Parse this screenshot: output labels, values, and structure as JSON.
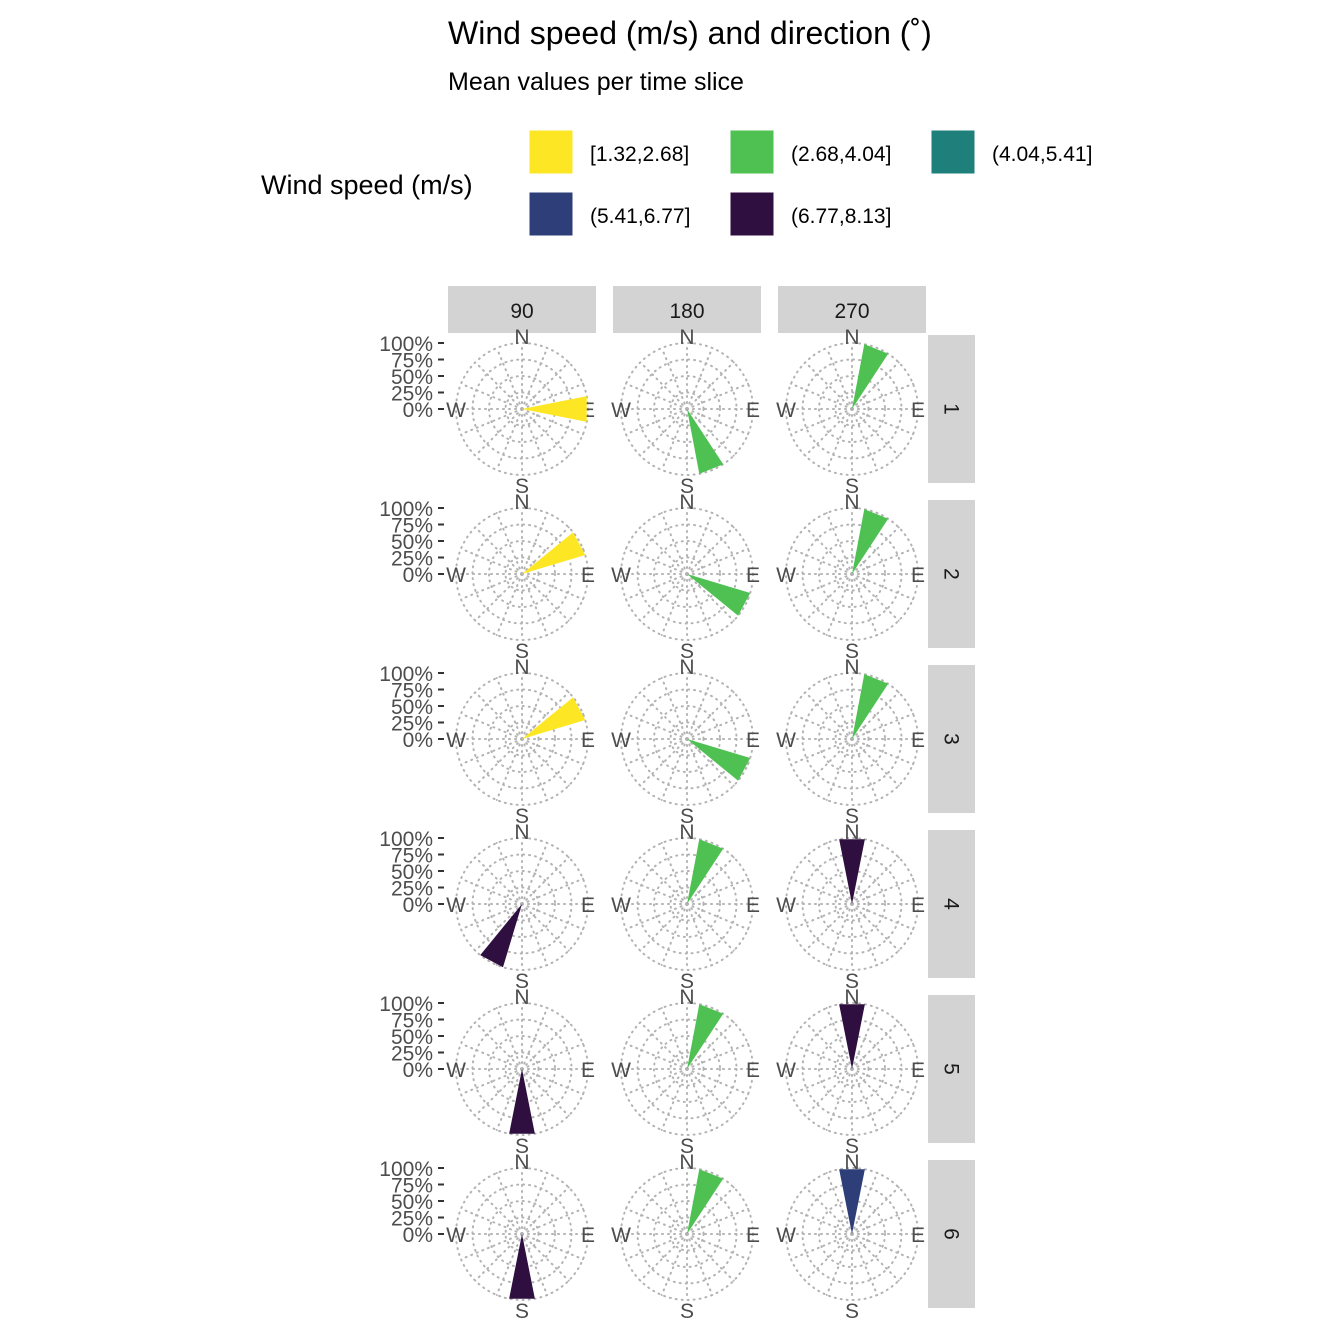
{
  "chart_data": {
    "type": "polar-bar",
    "title": "Wind speed (m/s) and direction (˚)",
    "subtitle": "Mean values per time slice",
    "legend": {
      "title": "Wind speed (m/s)",
      "entries": [
        {
          "label": "[1.32,2.68]",
          "color": "#FDE725"
        },
        {
          "label": "(2.68,4.04]",
          "color": "#4FC152"
        },
        {
          "label": "(4.04,5.41]",
          "color": "#1F7F7A"
        },
        {
          "label": "(5.41,6.77]",
          "color": "#2D3E79"
        },
        {
          "label": "(6.77,8.13]",
          "color": "#2F0F40"
        }
      ]
    },
    "columns": [
      "90",
      "180",
      "270"
    ],
    "rows": [
      "1",
      "2",
      "3",
      "4",
      "5",
      "6"
    ],
    "radial_ticks": [
      "100%",
      "75%",
      "50%",
      "25%",
      "0%"
    ],
    "compass_labels": {
      "n": "N",
      "e": "E",
      "s": "S",
      "w": "W"
    },
    "grid": "dotted",
    "panels": [
      {
        "row": "1",
        "col": "90",
        "direction": 90,
        "value": 100,
        "bin": 0
      },
      {
        "row": "1",
        "col": "180",
        "direction": 158,
        "value": 100,
        "bin": 1
      },
      {
        "row": "1",
        "col": "270",
        "direction": 22,
        "value": 100,
        "bin": 1
      },
      {
        "row": "2",
        "col": "90",
        "direction": 62,
        "value": 100,
        "bin": 0
      },
      {
        "row": "2",
        "col": "180",
        "direction": 118,
        "value": 100,
        "bin": 1
      },
      {
        "row": "2",
        "col": "270",
        "direction": 22,
        "value": 100,
        "bin": 1
      },
      {
        "row": "3",
        "col": "90",
        "direction": 62,
        "value": 100,
        "bin": 0
      },
      {
        "row": "3",
        "col": "180",
        "direction": 118,
        "value": 100,
        "bin": 1
      },
      {
        "row": "3",
        "col": "270",
        "direction": 22,
        "value": 100,
        "bin": 1
      },
      {
        "row": "4",
        "col": "90",
        "direction": 208,
        "value": 100,
        "bin": 4
      },
      {
        "row": "4",
        "col": "180",
        "direction": 22,
        "value": 100,
        "bin": 1
      },
      {
        "row": "4",
        "col": "270",
        "direction": 0,
        "value": 100,
        "bin": 4
      },
      {
        "row": "5",
        "col": "90",
        "direction": 180,
        "value": 100,
        "bin": 4
      },
      {
        "row": "5",
        "col": "180",
        "direction": 22,
        "value": 100,
        "bin": 1
      },
      {
        "row": "5",
        "col": "270",
        "direction": 0,
        "value": 100,
        "bin": 4
      },
      {
        "row": "6",
        "col": "90",
        "direction": 180,
        "value": 100,
        "bin": 4
      },
      {
        "row": "6",
        "col": "180",
        "direction": 22,
        "value": 100,
        "bin": 1
      },
      {
        "row": "6",
        "col": "270",
        "direction": 0,
        "value": 100,
        "bin": 3
      }
    ]
  }
}
